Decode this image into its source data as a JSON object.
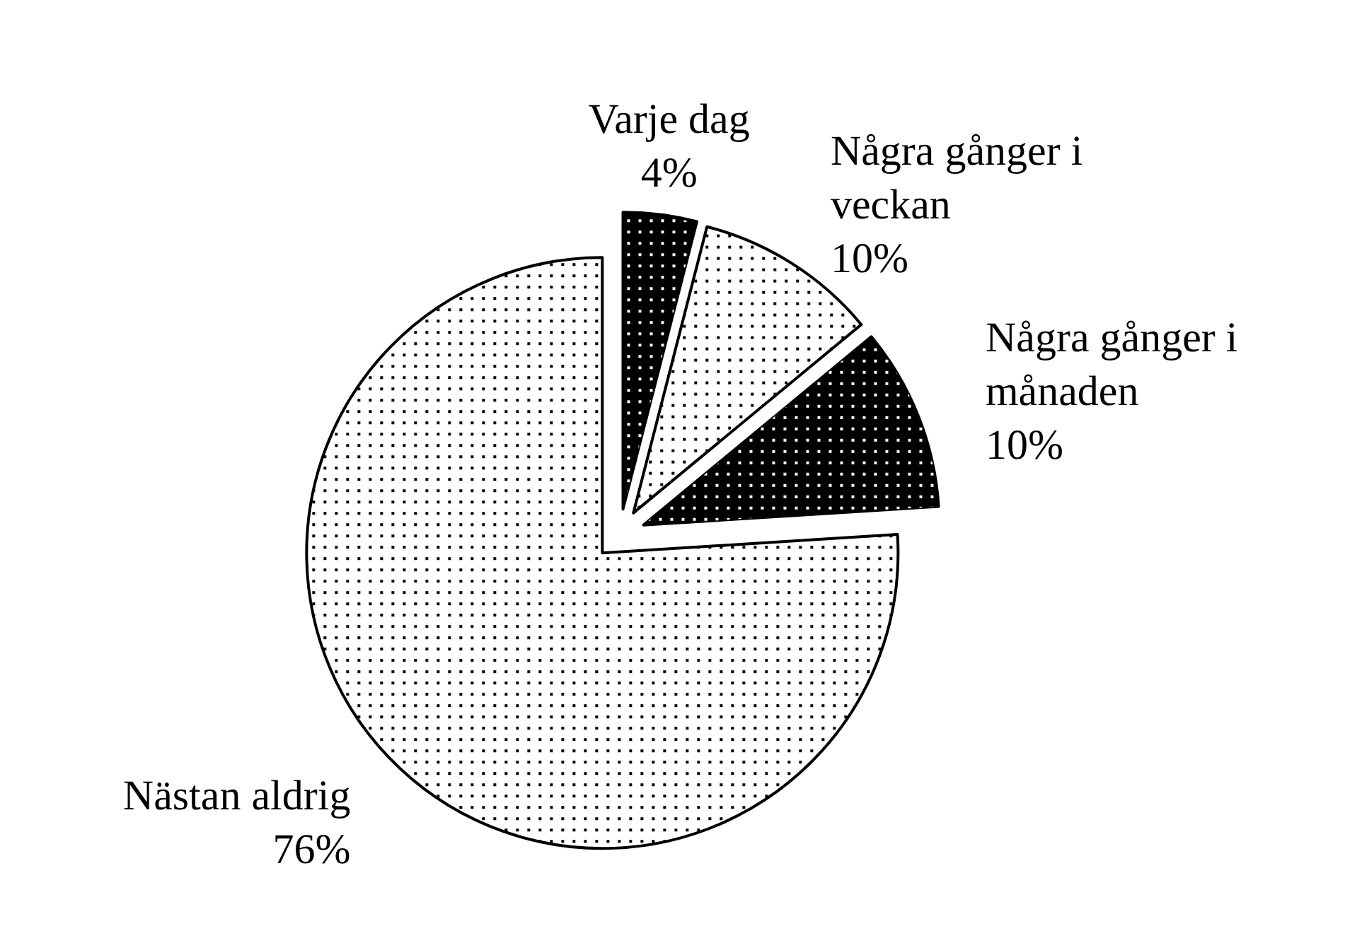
{
  "chart_data": {
    "type": "pie",
    "categories": [
      "Varje dag",
      "Några gånger i veckan",
      "Några gånger i månaden",
      "Nästan aldrig"
    ],
    "values": [
      4,
      10,
      10,
      76
    ],
    "value_labels": [
      "4%",
      "10%",
      "10%",
      "76%"
    ],
    "colors": [
      "#000000",
      "#ffffff",
      "#000000",
      "#ffffff"
    ],
    "legend": false
  }
}
